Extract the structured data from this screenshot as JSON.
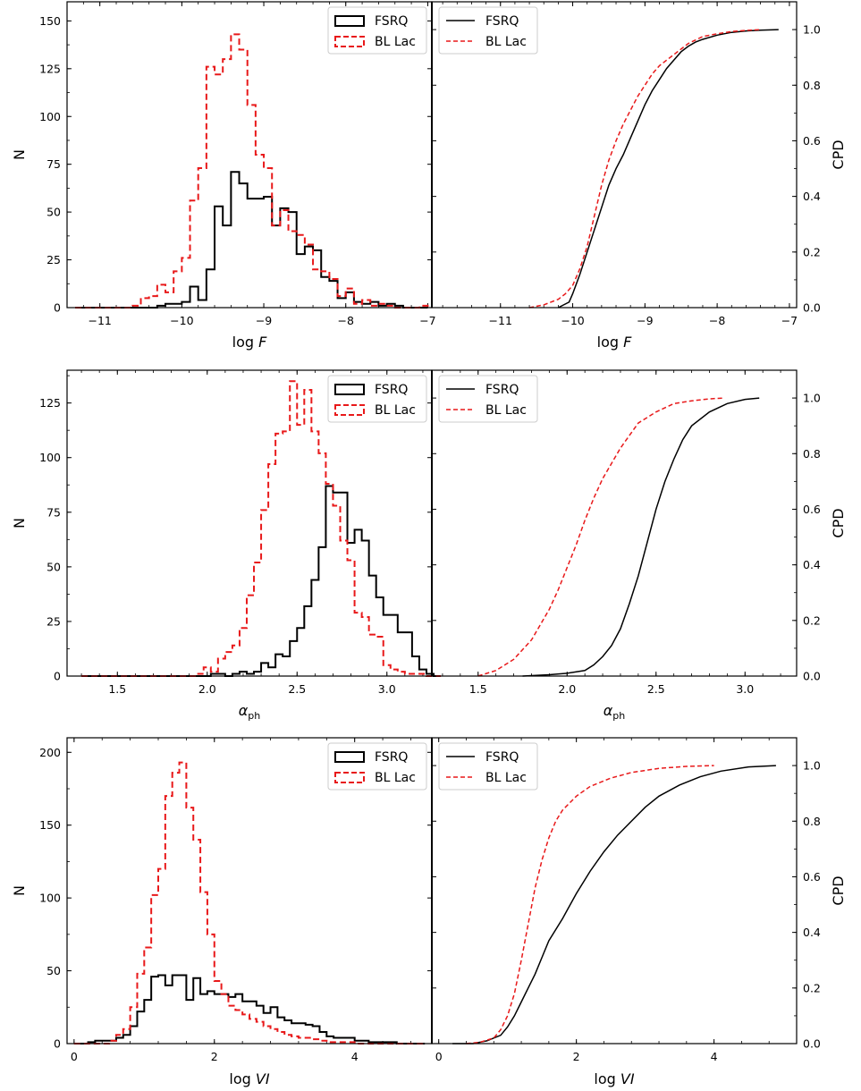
{
  "legend": {
    "fsrq": "FSRQ",
    "bllac": "BL Lac"
  },
  "colors": {
    "fsrq": "#000000",
    "bllac": "#e8191a"
  },
  "chart_data": [
    {
      "type": "histogram",
      "panel": "logF-hist",
      "xlabel": "log F",
      "ylabel": "N",
      "xlim": [
        -11.4,
        -6.95
      ],
      "ylim": [
        0,
        160
      ],
      "xticks": [
        -11,
        -10,
        -9,
        -8,
        -7
      ],
      "xtick_labels": [
        "−11",
        "−10",
        "−9",
        "−8",
        "−7"
      ],
      "yticks": [
        0,
        25,
        50,
        75,
        100,
        125,
        150
      ],
      "ytick_labels": [
        "0",
        "25",
        "50",
        "75",
        "100",
        "125",
        "150"
      ],
      "legend_position": "top-right",
      "bin_start": -11.3,
      "bin_width": 0.1,
      "series": [
        {
          "name": "FSRQ",
          "values": [
            0,
            0,
            0,
            0,
            0,
            0,
            0,
            0,
            0,
            0,
            1,
            2,
            2,
            3,
            11,
            4,
            20,
            53,
            43,
            71,
            65,
            57,
            57,
            58,
            43,
            52,
            50,
            28,
            32,
            30,
            16,
            14,
            5,
            8,
            3,
            2,
            3,
            1,
            2,
            1,
            0,
            0,
            0
          ]
        },
        {
          "name": "BL Lac",
          "values": [
            0,
            0,
            0,
            0,
            0,
            0,
            0,
            1,
            5,
            6,
            12,
            8,
            19,
            26,
            56,
            73,
            126,
            122,
            130,
            143,
            135,
            106,
            80,
            73,
            43,
            51,
            40,
            38,
            33,
            20,
            19,
            15,
            6,
            10,
            2,
            4,
            1,
            2,
            1,
            0,
            0,
            0,
            1
          ]
        }
      ]
    },
    {
      "type": "line",
      "panel": "logF-cpd",
      "xlabel": "log F",
      "ylabel": "CPD",
      "xlim": [
        -11.95,
        -6.9
      ],
      "ylim": [
        0,
        1.1
      ],
      "xticks": [
        -11,
        -10,
        -9,
        -8,
        -7
      ],
      "xtick_labels": [
        "−11",
        "−10",
        "−9",
        "−8",
        "−7"
      ],
      "yticks": [
        0,
        0.2,
        0.4,
        0.6,
        0.8,
        1.0
      ],
      "ytick_labels": [
        "0.0",
        "0.2",
        "0.4",
        "0.6",
        "0.8",
        "1.0"
      ],
      "legend_position": "top-left",
      "series": [
        {
          "name": "FSRQ",
          "x": [
            -10.2,
            -10.05,
            -10.0,
            -9.9,
            -9.8,
            -9.7,
            -9.6,
            -9.5,
            -9.4,
            -9.3,
            -9.2,
            -9.1,
            -9.0,
            -8.9,
            -8.8,
            -8.7,
            -8.6,
            -8.5,
            -8.4,
            -8.3,
            -8.2,
            -8.0,
            -7.8,
            -7.6,
            -7.4,
            -7.15
          ],
          "y": [
            0.0,
            0.02,
            0.05,
            0.12,
            0.2,
            0.28,
            0.36,
            0.44,
            0.5,
            0.55,
            0.61,
            0.67,
            0.73,
            0.78,
            0.82,
            0.86,
            0.89,
            0.92,
            0.94,
            0.955,
            0.965,
            0.98,
            0.99,
            0.995,
            0.998,
            1.0
          ]
        },
        {
          "name": "BL Lac",
          "x": [
            -10.6,
            -10.4,
            -10.2,
            -10.1,
            -10.0,
            -9.9,
            -9.8,
            -9.7,
            -9.6,
            -9.5,
            -9.4,
            -9.3,
            -9.2,
            -9.1,
            -9.0,
            -8.9,
            -8.8,
            -8.6,
            -8.4,
            -8.2,
            -8.0,
            -7.8,
            -7.6,
            -7.4
          ],
          "y": [
            0.0,
            0.01,
            0.03,
            0.05,
            0.08,
            0.14,
            0.22,
            0.33,
            0.44,
            0.53,
            0.6,
            0.66,
            0.71,
            0.76,
            0.8,
            0.84,
            0.87,
            0.91,
            0.95,
            0.975,
            0.985,
            0.993,
            0.997,
            1.0
          ]
        }
      ]
    },
    {
      "type": "histogram",
      "panel": "alpha-hist",
      "xlabel": "αph",
      "ylabel": "N",
      "xlim": [
        1.22,
        3.25
      ],
      "ylim": [
        0,
        140
      ],
      "xticks": [
        1.5,
        2.0,
        2.5,
        3.0
      ],
      "xtick_labels": [
        "1.5",
        "2.0",
        "2.5",
        "3.0"
      ],
      "yticks": [
        0,
        25,
        50,
        75,
        100,
        125
      ],
      "ytick_labels": [
        "0",
        "25",
        "50",
        "75",
        "100",
        "125"
      ],
      "legend_position": "top-right",
      "bin_start": 1.3,
      "bin_width": 0.04,
      "series": [
        {
          "name": "FSRQ",
          "values": [
            0,
            0,
            0,
            0,
            0,
            0,
            0,
            0,
            0,
            0,
            0,
            0,
            0,
            0,
            0,
            0,
            0,
            0,
            1,
            1,
            0,
            1,
            2,
            1,
            2,
            6,
            4,
            10,
            9,
            16,
            22,
            32,
            44,
            59,
            87,
            84,
            84,
            61,
            67,
            62,
            46,
            36,
            28,
            28,
            20,
            20,
            9,
            3,
            1,
            0
          ]
        },
        {
          "name": "BL Lac",
          "values": [
            0,
            0,
            0,
            0,
            0,
            0,
            0,
            0,
            0,
            0,
            0,
            0,
            0,
            0,
            0,
            0,
            1,
            4,
            2,
            8,
            11,
            14,
            22,
            37,
            52,
            76,
            97,
            111,
            112,
            135,
            115,
            131,
            112,
            102,
            88,
            78,
            62,
            53,
            29,
            27,
            19,
            18,
            5,
            3,
            2,
            1,
            1,
            1,
            0,
            0
          ]
        }
      ]
    },
    {
      "type": "line",
      "panel": "alpha-cpd",
      "xlabel": "αph",
      "ylabel": "CPD",
      "xlim": [
        1.24,
        3.29
      ],
      "ylim": [
        0,
        1.1
      ],
      "xticks": [
        1.5,
        2.0,
        2.5,
        3.0
      ],
      "xtick_labels": [
        "1.5",
        "2.0",
        "2.5",
        "3.0"
      ],
      "yticks": [
        0,
        0.2,
        0.4,
        0.6,
        0.8,
        1.0
      ],
      "ytick_labels": [
        "0.0",
        "0.2",
        "0.4",
        "0.6",
        "0.8",
        "1.0"
      ],
      "legend_position": "top-left",
      "series": [
        {
          "name": "FSRQ",
          "x": [
            1.75,
            1.9,
            2.0,
            2.1,
            2.15,
            2.2,
            2.25,
            2.3,
            2.35,
            2.4,
            2.45,
            2.5,
            2.55,
            2.6,
            2.65,
            2.7,
            2.8,
            2.9,
            3.0,
            3.08
          ],
          "y": [
            0.0,
            0.005,
            0.01,
            0.02,
            0.04,
            0.07,
            0.11,
            0.17,
            0.26,
            0.36,
            0.48,
            0.6,
            0.7,
            0.78,
            0.85,
            0.9,
            0.95,
            0.98,
            0.995,
            1.0
          ]
        },
        {
          "name": "BL Lac",
          "x": [
            1.5,
            1.6,
            1.7,
            1.8,
            1.9,
            1.95,
            2.0,
            2.05,
            2.1,
            2.15,
            2.2,
            2.3,
            2.4,
            2.5,
            2.6,
            2.7,
            2.8,
            2.88
          ],
          "y": [
            0.0,
            0.02,
            0.06,
            0.13,
            0.24,
            0.31,
            0.39,
            0.47,
            0.56,
            0.64,
            0.71,
            0.82,
            0.91,
            0.95,
            0.98,
            0.99,
            0.997,
            1.0
          ]
        }
      ]
    },
    {
      "type": "histogram",
      "panel": "logVI-hist",
      "xlabel": "log VI",
      "ylabel": "N",
      "xlim": [
        -0.1,
        5.1
      ],
      "ylim": [
        0,
        210
      ],
      "xticks": [
        0,
        2,
        4
      ],
      "xtick_labels": [
        "0",
        "2",
        "4"
      ],
      "yticks": [
        0,
        50,
        100,
        150,
        200
      ],
      "ytick_labels": [
        "0",
        "50",
        "100",
        "150",
        "200"
      ],
      "legend_position": "top-right",
      "bin_start": 0.0,
      "bin_width": 0.1,
      "series": [
        {
          "name": "FSRQ",
          "values": [
            0,
            0,
            1,
            2,
            2,
            2,
            4,
            6,
            12,
            22,
            30,
            46,
            47,
            40,
            47,
            47,
            30,
            45,
            34,
            36,
            34,
            34,
            32,
            34,
            29,
            29,
            26,
            21,
            25,
            18,
            16,
            14,
            14,
            13,
            12,
            8,
            5,
            4,
            4,
            4,
            2,
            2,
            1,
            1,
            1,
            1,
            0,
            0,
            0,
            0
          ]
        },
        {
          "name": "BL Lac",
          "values": [
            0,
            0,
            0,
            0,
            0,
            2,
            6,
            10,
            25,
            48,
            66,
            102,
            120,
            170,
            186,
            193,
            162,
            140,
            104,
            75,
            43,
            34,
            26,
            23,
            20,
            17,
            15,
            12,
            10,
            8,
            6,
            5,
            4,
            4,
            3,
            2,
            1,
            1,
            1,
            1,
            0,
            0,
            0,
            0,
            0,
            0,
            0,
            0,
            0,
            0
          ]
        }
      ]
    },
    {
      "type": "line",
      "panel": "logVI-cpd",
      "xlabel": "log VI",
      "ylabel": "CPD",
      "xlim": [
        -0.1,
        5.2
      ],
      "ylim": [
        0,
        1.1
      ],
      "xticks": [
        0,
        2,
        4
      ],
      "xtick_labels": [
        "0",
        "2",
        "4"
      ],
      "yticks": [
        0,
        0.2,
        0.4,
        0.6,
        0.8,
        1.0
      ],
      "ytick_labels": [
        "0.0",
        "0.2",
        "0.4",
        "0.6",
        "0.8",
        "1.0"
      ],
      "legend_position": "top-left",
      "series": [
        {
          "name": "FSRQ",
          "x": [
            0.2,
            0.5,
            0.7,
            0.9,
            1.0,
            1.1,
            1.2,
            1.3,
            1.4,
            1.5,
            1.6,
            1.8,
            2.0,
            2.2,
            2.4,
            2.6,
            2.8,
            3.0,
            3.2,
            3.5,
            3.8,
            4.1,
            4.5,
            4.9
          ],
          "y": [
            0.0,
            0.0,
            0.01,
            0.03,
            0.06,
            0.1,
            0.15,
            0.2,
            0.25,
            0.31,
            0.37,
            0.45,
            0.54,
            0.62,
            0.69,
            0.75,
            0.8,
            0.85,
            0.89,
            0.93,
            0.96,
            0.98,
            0.995,
            1.0
          ]
        },
        {
          "name": "BL Lac",
          "x": [
            0.4,
            0.6,
            0.8,
            0.9,
            1.0,
            1.1,
            1.2,
            1.3,
            1.4,
            1.5,
            1.6,
            1.7,
            1.8,
            2.0,
            2.2,
            2.5,
            2.8,
            3.2,
            3.6,
            4.0
          ],
          "y": [
            0.0,
            0.005,
            0.02,
            0.05,
            0.1,
            0.18,
            0.3,
            0.43,
            0.56,
            0.66,
            0.74,
            0.8,
            0.84,
            0.89,
            0.925,
            0.955,
            0.975,
            0.99,
            0.997,
            1.0
          ]
        }
      ]
    }
  ]
}
